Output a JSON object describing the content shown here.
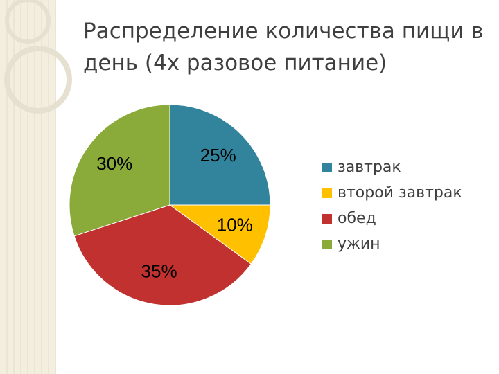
{
  "chart_data": {
    "type": "pie",
    "title": "Распределение количества пищи в день (4х разовое питание)",
    "categories": [
      "завтрак",
      "второй завтрак",
      "обед",
      "ужин"
    ],
    "values": [
      25,
      10,
      35,
      30
    ],
    "value_labels": [
      "25%",
      "10%",
      "35%",
      "30%"
    ],
    "colors": [
      "#31849b",
      "#ffc000",
      "#c0312f",
      "#8aab3a"
    ],
    "legend": "right"
  }
}
